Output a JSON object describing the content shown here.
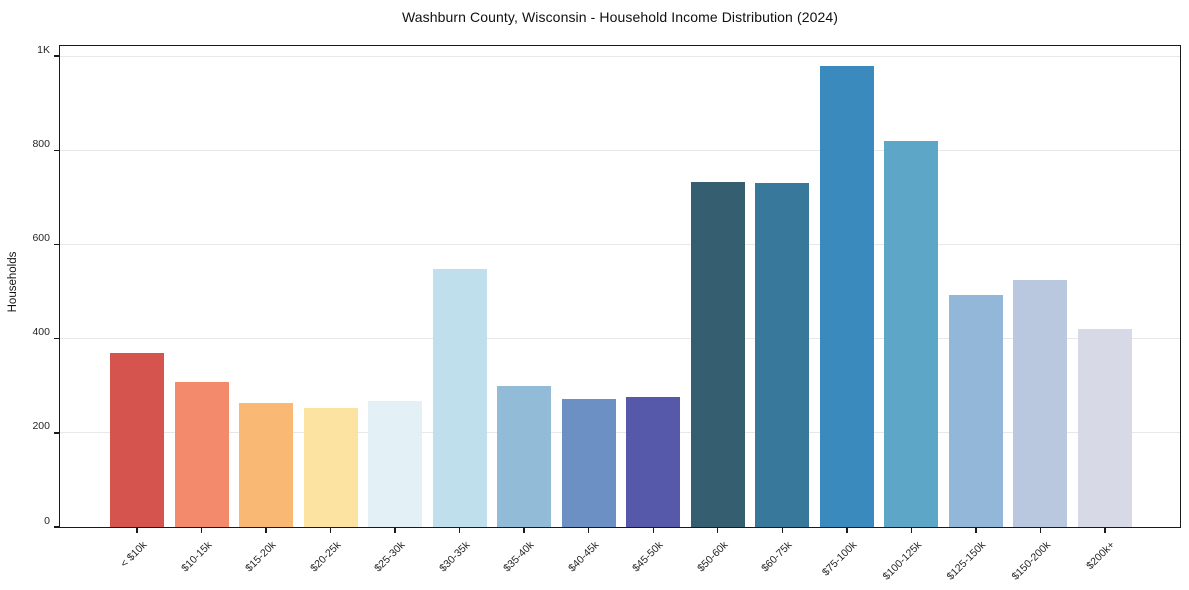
{
  "chart_data": {
    "type": "bar",
    "title": "Washburn County, Wisconsin - Household Income Distribution (2024)",
    "xlabel": "",
    "ylabel": "Households",
    "categories": [
      "< $10k",
      "$10-15k",
      "$15-20k",
      "$20-25k",
      "$25-30k",
      "$30-35k",
      "$35-40k",
      "$40-45k",
      "$45-50k",
      "$50-60k",
      "$60-75k",
      "$75-100k",
      "$100-125k",
      "$125-150k",
      "$150-200k",
      "$200k+"
    ],
    "values": [
      370,
      308,
      263,
      252,
      268,
      548,
      300,
      272,
      277,
      733,
      730,
      978,
      820,
      493,
      525,
      420
    ],
    "bar_colors": [
      "#d6544e",
      "#f38a6b",
      "#f9b873",
      "#fce3a2",
      "#e3f0f5",
      "#bedfeb",
      "#92bbd7",
      "#6c90c4",
      "#5659aa",
      "#355e71",
      "#37789b",
      "#3a8abe",
      "#5ea6c8",
      "#93b7d8",
      "#b9c8df",
      "#d7d9e7"
    ],
    "y_ticks": [
      {
        "label": "0",
        "value": 0
      },
      {
        "label": "200",
        "value": 200
      },
      {
        "label": "400",
        "value": 400
      },
      {
        "label": "600",
        "value": 600
      },
      {
        "label": "800",
        "value": 800
      },
      {
        "label": "1K",
        "value": 1000
      }
    ],
    "ylim": [
      0,
      1025
    ],
    "grid": "horizontal",
    "gridline_color": "#e8e8e8",
    "axis_color": "#1a1a1a",
    "text_color": "#262626",
    "legend": "none"
  }
}
